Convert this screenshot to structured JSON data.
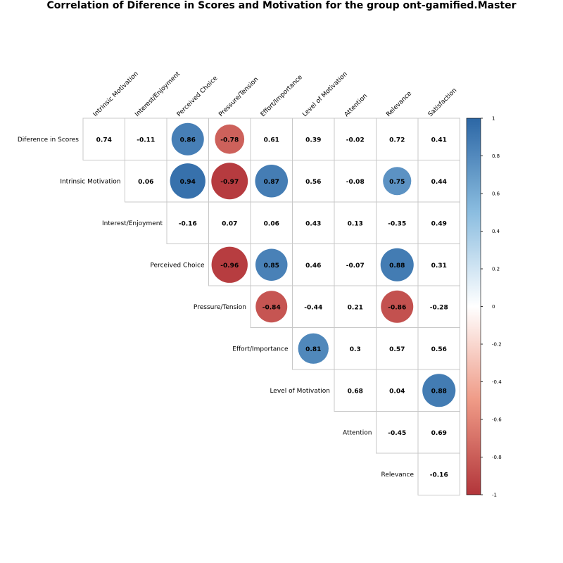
{
  "chart_data": {
    "type": "heatmap",
    "title": "Correlation of Diference in Scores and Motivation for the group ont-gamified.Master",
    "row_labels": [
      "Diference in Scores",
      "Intrinsic Motivation",
      "Interest/Enjoyment",
      "Perceived Choice",
      "Pressure/Tension",
      "Effort/Importance",
      "Level of Motivation",
      "Attention",
      "Relevance"
    ],
    "col_labels": [
      "Intrinsic Motivation",
      "Interest/Enjoyment",
      "Perceived Choice",
      "Pressure/Tension",
      "Effort/Importance",
      "Level of Motivation",
      "Attention",
      "Relevance",
      "Satisfaction"
    ],
    "values": [
      [
        0.74,
        -0.11,
        0.86,
        -0.78,
        0.61,
        0.39,
        -0.02,
        0.72,
        0.41
      ],
      [
        null,
        0.06,
        0.94,
        -0.97,
        0.87,
        0.56,
        -0.08,
        0.75,
        0.44
      ],
      [
        null,
        null,
        -0.16,
        0.07,
        0.06,
        0.43,
        0.13,
        -0.35,
        0.49
      ],
      [
        null,
        null,
        null,
        -0.96,
        0.85,
        0.46,
        -0.07,
        0.88,
        0.31
      ],
      [
        null,
        null,
        null,
        null,
        -0.84,
        -0.44,
        0.21,
        -0.86,
        -0.28
      ],
      [
        null,
        null,
        null,
        null,
        null,
        0.81,
        0.3,
        0.57,
        0.56
      ],
      [
        null,
        null,
        null,
        null,
        null,
        null,
        0.68,
        0.04,
        0.88
      ],
      [
        null,
        null,
        null,
        null,
        null,
        null,
        null,
        -0.45,
        0.69
      ],
      [
        null,
        null,
        null,
        null,
        null,
        null,
        null,
        null,
        -0.16
      ]
    ],
    "value_labels": [
      [
        "0.74",
        "-0.11",
        "0.86",
        "-0.78",
        "0.61",
        "0.39",
        "-0.02",
        "0.72",
        "0.41"
      ],
      [
        null,
        "0.06",
        "0.94",
        "-0.97",
        "0.87",
        "0.56",
        "-0.08",
        "0.75",
        "0.44"
      ],
      [
        null,
        null,
        "-0.16",
        "0.07",
        "0.06",
        "0.43",
        "0.13",
        "-0.35",
        "0.49"
      ],
      [
        null,
        null,
        null,
        "-0.96",
        "0.85",
        "0.46",
        "-0.07",
        "0.88",
        "0.31"
      ],
      [
        null,
        null,
        null,
        null,
        "-0.84",
        "-0.44",
        "0.21",
        "-0.86",
        "-0.28"
      ],
      [
        null,
        null,
        null,
        null,
        null,
        "0.81",
        "0.3",
        "0.57",
        "0.56"
      ],
      [
        null,
        null,
        null,
        null,
        null,
        null,
        "0.68",
        "0.04",
        "0.88"
      ],
      [
        null,
        null,
        null,
        null,
        null,
        null,
        null,
        "-0.45",
        "0.69"
      ],
      [
        null,
        null,
        null,
        null,
        null,
        null,
        null,
        null,
        "-0.16"
      ]
    ],
    "circle_threshold": 0.75,
    "color_range": [
      -1,
      1
    ],
    "colorbar_ticks": [
      1,
      0.8,
      0.6,
      0.4,
      0.2,
      0,
      -0.2,
      -0.4,
      -0.6,
      -0.8,
      -1
    ],
    "colorbar_tick_labels": [
      "1",
      "0.8",
      "0.6",
      "0.4",
      "0.2",
      "0",
      "-0.2",
      "-0.4",
      "-0.6",
      "-0.8",
      "-1"
    ],
    "colors": {
      "negative_end": "#b2353a",
      "negative_mid": "#ef9a86",
      "neutral": "#ffffff",
      "positive_mid": "#8bbde0",
      "positive_end": "#2c67a5",
      "grid": "#c8c8c8"
    },
    "legend_position": "right"
  }
}
